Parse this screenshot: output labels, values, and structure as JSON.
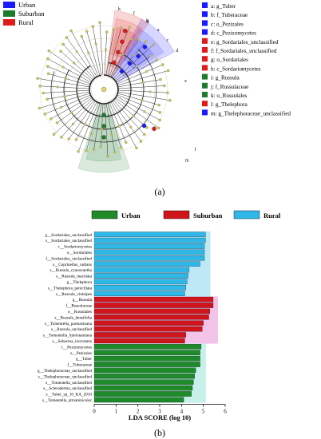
{
  "figure_a": {
    "panel_label": "(a)",
    "colors": {
      "Urban": "#1a1aff",
      "Suburban": "#1e7b2e",
      "Rural": "#e01b1b"
    },
    "group_legend": [
      "Urban",
      "Suburban",
      "Rural"
    ],
    "node_legend": [
      {
        "key": "a",
        "taxon": "g_Tuber",
        "group": "Urban"
      },
      {
        "key": "b",
        "taxon": "f_Tuberaceae",
        "group": "Urban"
      },
      {
        "key": "c",
        "taxon": "o_Pezizales",
        "group": "Urban"
      },
      {
        "key": "d",
        "taxon": "c_Pezizomycetes",
        "group": "Urban"
      },
      {
        "key": "e",
        "taxon": "g_Sordariales_unclassified",
        "group": "Rural"
      },
      {
        "key": "f",
        "taxon": "f_Sordariales_unclassified",
        "group": "Rural"
      },
      {
        "key": "g",
        "taxon": "o_Sordariales",
        "group": "Rural"
      },
      {
        "key": "h",
        "taxon": "c_Sordariomycetes",
        "group": "Rural"
      },
      {
        "key": "i",
        "taxon": "g_Russula",
        "group": "Suburban"
      },
      {
        "key": "j",
        "taxon": "f_Russulaceae",
        "group": "Suburban"
      },
      {
        "key": "k",
        "taxon": "o_Russulales",
        "group": "Suburban"
      },
      {
        "key": "l",
        "taxon": "g_Thelephora",
        "group": "Rural"
      },
      {
        "key": "m",
        "taxon": "g_Thelephoraceae_unclassified",
        "group": "Urban"
      }
    ]
  },
  "chart_data": {
    "type": "bar",
    "panel_label": "(b)",
    "xlabel": "LDA SCORE (log 10)",
    "xlim": [
      0,
      6
    ],
    "xticks": [
      0,
      1,
      2,
      3,
      4,
      5,
      6
    ],
    "legend": [
      {
        "name": "Urban",
        "color": "#1e8a2a"
      },
      {
        "name": "Suburban",
        "color": "#d0141b"
      },
      {
        "name": "Rural",
        "color": "#2fb7e8"
      }
    ],
    "bars": [
      {
        "label": "g__Sordariales_unclassified",
        "value": 5.1,
        "group": "Rural"
      },
      {
        "label": "s__Sordariales_unclassified",
        "value": 5.1,
        "group": "Rural"
      },
      {
        "label": "c__Sordariomycetes",
        "value": 5.05,
        "group": "Rural"
      },
      {
        "label": "o__Sordariales",
        "value": 5.05,
        "group": "Rural"
      },
      {
        "label": "f__Sordariales_unclassified",
        "value": 5.05,
        "group": "Rural"
      },
      {
        "label": "s__Coprinellus_radians",
        "value": 4.85,
        "group": "Rural"
      },
      {
        "label": "s__Russula_cyanoxantha",
        "value": 4.35,
        "group": "Rural"
      },
      {
        "label": "s__Russula_maculata",
        "value": 4.3,
        "group": "Rural"
      },
      {
        "label": "g__Thelephora",
        "value": 4.25,
        "group": "Rural"
      },
      {
        "label": "s__Thelephora_penicillata",
        "value": 4.2,
        "group": "Rural"
      },
      {
        "label": "s__Russula_violeipes",
        "value": 4.15,
        "group": "Rural"
      },
      {
        "label": "g__Russula",
        "value": 5.45,
        "group": "Suburban"
      },
      {
        "label": "f__Russulaceae",
        "value": 5.45,
        "group": "Suburban"
      },
      {
        "label": "o__Russulales",
        "value": 5.3,
        "group": "Suburban"
      },
      {
        "label": "s__Russula_densifolia",
        "value": 5.25,
        "group": "Suburban"
      },
      {
        "label": "s__Tomentella_parmastoana",
        "value": 5.0,
        "group": "Suburban"
      },
      {
        "label": "s__Russula_unclassified",
        "value": 4.95,
        "group": "Suburban"
      },
      {
        "label": "s__Tomentella_bjortstamiana",
        "value": 4.2,
        "group": "Suburban"
      },
      {
        "label": "s__Sebacina_incrustans",
        "value": 4.15,
        "group": "Suburban"
      },
      {
        "label": "c__Pezizomycetes",
        "value": 4.9,
        "group": "Urban"
      },
      {
        "label": "o__Pezizales",
        "value": 4.85,
        "group": "Urban"
      },
      {
        "label": "g__Tuber",
        "value": 4.85,
        "group": "Urban"
      },
      {
        "label": "f__Tuberaceae",
        "value": 4.85,
        "group": "Urban"
      },
      {
        "label": "g__Thelephoraceae_unclassified",
        "value": 4.65,
        "group": "Urban"
      },
      {
        "label": "s__Thelephoraceae_unclassified",
        "value": 4.6,
        "group": "Urban"
      },
      {
        "label": "s__Tomentella_unclassified",
        "value": 4.55,
        "group": "Urban"
      },
      {
        "label": "s__Scleroderma_unclassified",
        "value": 4.5,
        "group": "Urban"
      },
      {
        "label": "s__Tuber_sp_10_KA_2010",
        "value": 4.45,
        "group": "Urban"
      },
      {
        "label": "s__Tomentella_atroarenicolor",
        "value": 4.1,
        "group": "Urban"
      }
    ]
  }
}
